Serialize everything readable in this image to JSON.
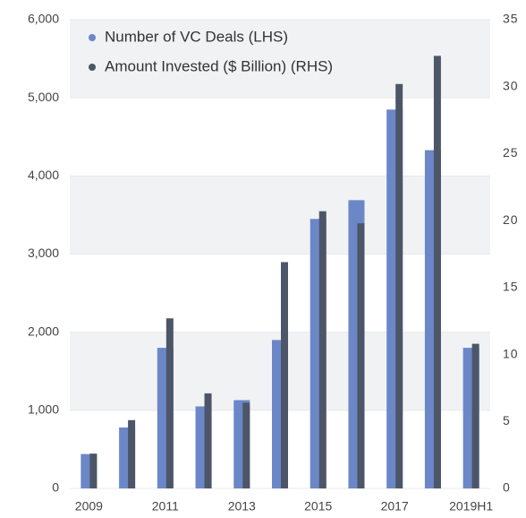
{
  "chart_data": {
    "type": "bar",
    "categories": [
      "2009",
      null,
      "2011",
      null,
      "2013",
      null,
      "2015",
      null,
      "2017",
      null,
      "2019H1"
    ],
    "series": [
      {
        "name": "Number of VC Deals (LHS)",
        "color": "#6b87c7",
        "values": [
          440,
          780,
          1800,
          1050,
          1130,
          1900,
          3450,
          3690,
          4850,
          4330,
          1800
        ]
      },
      {
        "name": "Amount Invested ($ Billion) (RHS)",
        "color": "#4d5668",
        "axis": "y2",
        "values": [
          2.6,
          5.1,
          12.7,
          7.1,
          6.4,
          16.9,
          20.7,
          19.8,
          30.2,
          32.3,
          10.8
        ]
      }
    ],
    "ylim": [
      0,
      6000
    ],
    "yticks": [
      0,
      {
        "value": 1000,
        "label": "1,000"
      },
      {
        "value": 2000,
        "label": "2,000"
      },
      {
        "value": 3000,
        "label": "3,000"
      },
      {
        "value": 4000,
        "label": "4,000"
      },
      {
        "value": 5000,
        "label": "5,000"
      },
      {
        "value": 6000,
        "label": "6,000"
      }
    ],
    "y2lim": [
      0,
      35
    ],
    "y2ticks": [
      0,
      5,
      10,
      15,
      20,
      25,
      30,
      35
    ],
    "grid": true,
    "legend": "top-left"
  }
}
